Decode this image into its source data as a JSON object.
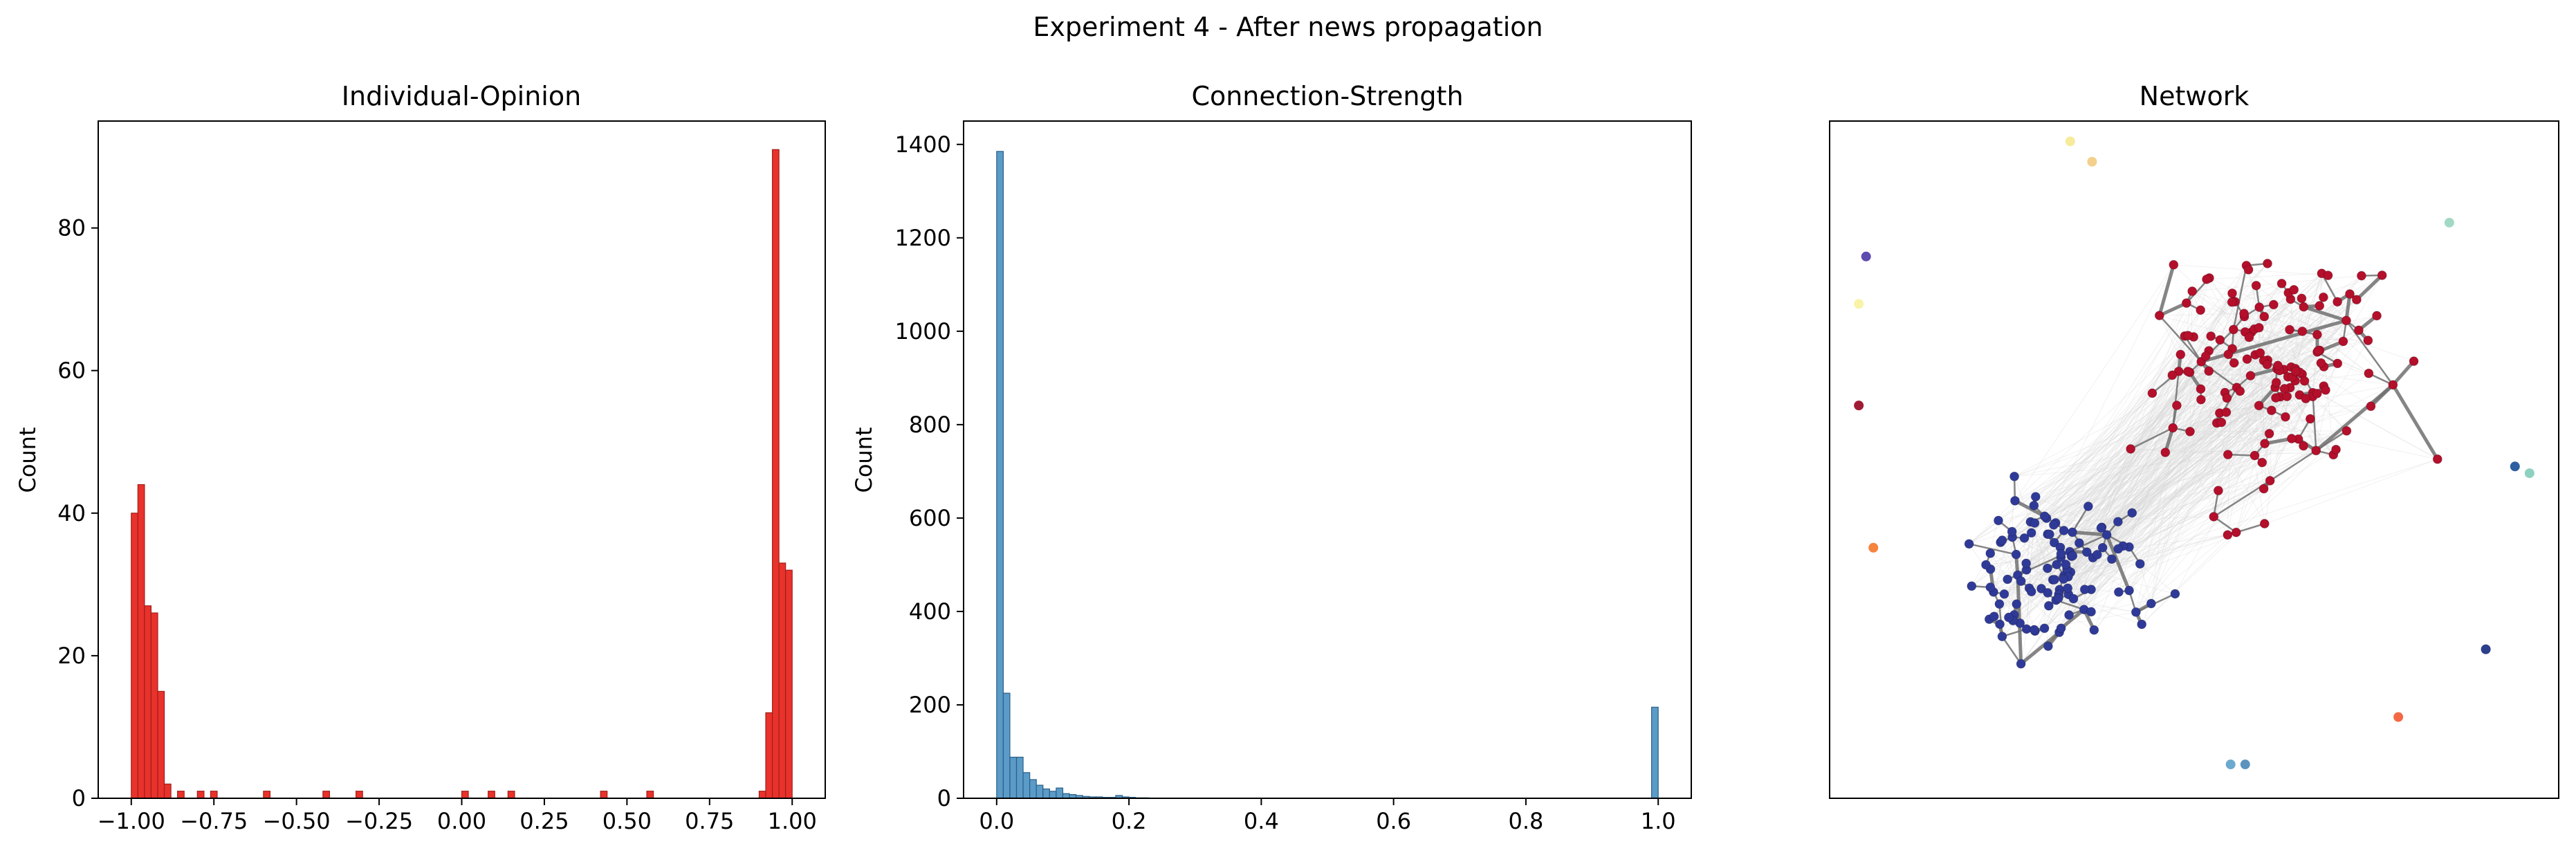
{
  "figure": {
    "suptitle": "Experiment 4 - After news propagation"
  },
  "colors": {
    "opinion_bar": "#e8322b",
    "opinion_edge": "#a11f1a",
    "strength_bar": "#5b9bc8",
    "strength_edge": "#2c5f86",
    "node_red": "#b40f2b",
    "node_blue": "#2f3a98",
    "edge_strong": "#707070",
    "edge_weak": "#d6d6d6"
  },
  "chart_data": [
    {
      "type": "bar",
      "name": "opinion-histogram",
      "title": "Individual-Opinion",
      "xlabel": "",
      "ylabel": "Count",
      "xlim": [
        -1.1,
        1.1
      ],
      "ylim": [
        0,
        95
      ],
      "bin_width": 0.02,
      "xticks": [
        -1.0,
        -0.75,
        -0.5,
        -0.25,
        0.0,
        0.25,
        0.5,
        0.75,
        1.0
      ],
      "xtick_labels": [
        "−1.00",
        "−0.75",
        "−0.50",
        "−0.25",
        "0.00",
        "0.25",
        "0.50",
        "0.75",
        "1.00"
      ],
      "yticks": [
        0,
        20,
        40,
        60,
        80
      ],
      "ytick_labels": [
        "0",
        "20",
        "40",
        "60",
        "80"
      ],
      "bins": [
        {
          "x": -1.0,
          "count": 40
        },
        {
          "x": -0.98,
          "count": 44
        },
        {
          "x": -0.96,
          "count": 27
        },
        {
          "x": -0.94,
          "count": 26
        },
        {
          "x": -0.92,
          "count": 15
        },
        {
          "x": -0.9,
          "count": 2
        },
        {
          "x": -0.86,
          "count": 1
        },
        {
          "x": -0.8,
          "count": 1
        },
        {
          "x": -0.76,
          "count": 1
        },
        {
          "x": -0.6,
          "count": 1
        },
        {
          "x": -0.42,
          "count": 1
        },
        {
          "x": -0.32,
          "count": 1
        },
        {
          "x": 0.0,
          "count": 1
        },
        {
          "x": 0.08,
          "count": 1
        },
        {
          "x": 0.14,
          "count": 1
        },
        {
          "x": 0.42,
          "count": 1
        },
        {
          "x": 0.56,
          "count": 1
        },
        {
          "x": 0.9,
          "count": 1
        },
        {
          "x": 0.92,
          "count": 12
        },
        {
          "x": 0.94,
          "count": 91
        },
        {
          "x": 0.96,
          "count": 33
        },
        {
          "x": 0.98,
          "count": 32
        }
      ]
    },
    {
      "type": "bar",
      "name": "strength-histogram",
      "title": "Connection-Strength",
      "xlabel": "",
      "ylabel": "Count",
      "xlim": [
        -0.05,
        1.05
      ],
      "ylim": [
        0,
        1450
      ],
      "bin_width": 0.01,
      "xticks": [
        0.0,
        0.2,
        0.4,
        0.6,
        0.8,
        1.0
      ],
      "xtick_labels": [
        "0.0",
        "0.2",
        "0.4",
        "0.6",
        "0.8",
        "1.0"
      ],
      "yticks": [
        0,
        200,
        400,
        600,
        800,
        1000,
        1200,
        1400
      ],
      "ytick_labels": [
        "0",
        "200",
        "400",
        "600",
        "800",
        "1000",
        "1200",
        "1400"
      ],
      "bins": [
        {
          "x": 0.0,
          "count": 1385
        },
        {
          "x": 0.01,
          "count": 225
        },
        {
          "x": 0.02,
          "count": 88
        },
        {
          "x": 0.03,
          "count": 88
        },
        {
          "x": 0.04,
          "count": 55
        },
        {
          "x": 0.05,
          "count": 40
        },
        {
          "x": 0.06,
          "count": 28
        },
        {
          "x": 0.07,
          "count": 20
        },
        {
          "x": 0.08,
          "count": 15
        },
        {
          "x": 0.09,
          "count": 22
        },
        {
          "x": 0.1,
          "count": 10
        },
        {
          "x": 0.11,
          "count": 8
        },
        {
          "x": 0.12,
          "count": 6
        },
        {
          "x": 0.13,
          "count": 4
        },
        {
          "x": 0.14,
          "count": 3
        },
        {
          "x": 0.15,
          "count": 3
        },
        {
          "x": 0.16,
          "count": 2
        },
        {
          "x": 0.17,
          "count": 2
        },
        {
          "x": 0.18,
          "count": 6
        },
        {
          "x": 0.19,
          "count": 3
        },
        {
          "x": 0.2,
          "count": 2
        },
        {
          "x": 0.21,
          "count": 1
        },
        {
          "x": 0.22,
          "count": 1
        },
        {
          "x": 0.99,
          "count": 195
        }
      ]
    },
    {
      "type": "scatter",
      "name": "network-graph",
      "title": "Network",
      "axes_visible": false,
      "clusters": [
        {
          "name": "red",
          "color": "#b40f2b",
          "cx": 0.6,
          "cy": 0.63,
          "sx": 0.075,
          "sy": 0.085,
          "count": 150,
          "seed": 7
        },
        {
          "name": "blue",
          "color": "#2f3a98",
          "cx": 0.31,
          "cy": 0.33,
          "sx": 0.06,
          "sy": 0.055,
          "count": 110,
          "seed": 19
        }
      ],
      "isolated_nodes": [
        {
          "x": 0.33,
          "y": 0.97,
          "color": "#f6eb9a"
        },
        {
          "x": 0.36,
          "y": 0.94,
          "color": "#f3d08c"
        },
        {
          "x": 0.05,
          "y": 0.8,
          "color": "#5e4cb0"
        },
        {
          "x": 0.04,
          "y": 0.73,
          "color": "#f8f3a6"
        },
        {
          "x": 0.04,
          "y": 0.58,
          "color": "#a01b36"
        },
        {
          "x": 0.06,
          "y": 0.37,
          "color": "#f6843f"
        },
        {
          "x": 0.85,
          "y": 0.85,
          "color": "#a3d9c4"
        },
        {
          "x": 0.94,
          "y": 0.49,
          "color": "#2e5fa0"
        },
        {
          "x": 0.96,
          "y": 0.48,
          "color": "#8ed1c1"
        },
        {
          "x": 0.9,
          "y": 0.22,
          "color": "#2c3f8c"
        },
        {
          "x": 0.78,
          "y": 0.12,
          "color": "#f46943"
        },
        {
          "x": 0.55,
          "y": 0.05,
          "color": "#6ba9cf"
        },
        {
          "x": 0.57,
          "y": 0.05,
          "color": "#5b93be"
        }
      ]
    }
  ]
}
